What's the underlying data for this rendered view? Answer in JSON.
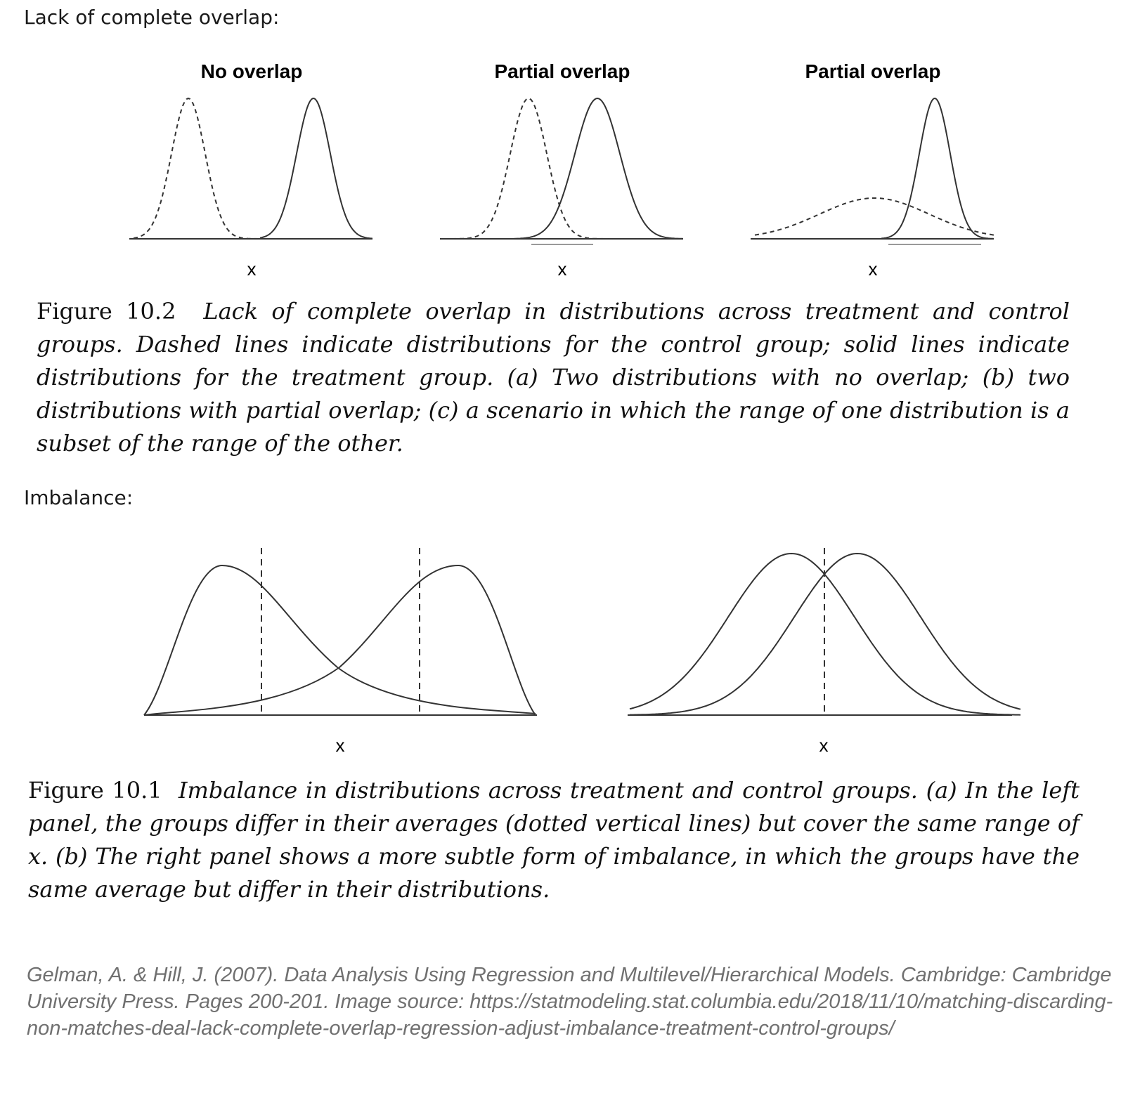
{
  "section_overlap": {
    "heading": "Lack of complete overlap:",
    "panels": [
      {
        "title": "No overlap",
        "xlabel": "x"
      },
      {
        "title": "Partial overlap",
        "xlabel": "x"
      },
      {
        "title": "Partial overlap",
        "xlabel": "x"
      }
    ],
    "caption_number": "Figure 10.2",
    "caption_text": "Lack of complete overlap in distributions across treatment and control groups. Dashed lines indicate distributions for the control group; solid lines indicate distributions for the treatment group. (a) Two distributions with no overlap; (b) two distributions with partial overlap; (c) a scenario in which the range of one distribution is a subset of the range of the other."
  },
  "section_imbalance": {
    "heading": "Imbalance:",
    "panels": [
      {
        "xlabel": "x"
      },
      {
        "xlabel": "x"
      }
    ],
    "caption_number": "Figure 10.1",
    "caption_text": "Imbalance in distributions across treatment and control groups. (a) In the left panel, the groups differ in their averages (dotted vertical lines) but cover the same range of x. (b) The right panel shows a more subtle form of imbalance, in which the groups have the same average but differ in their distributions."
  },
  "citation": "Gelman, A. & Hill, J. (2007). Data Analysis Using Regression and Multilevel/Hierarchical Models. Cambridge: Cambridge University Press. Pages 200-201. Image source: https://statmodeling.stat.columbia.edu/2018/11/10/matching-discarding-non-matches-deal-lack-complete-overlap-regression-adjust-imbalance-treatment-control-groups/",
  "colors": {
    "curve": "#333333",
    "axis": "#333333",
    "range_bar": "#999999",
    "citation": "#707070"
  }
}
